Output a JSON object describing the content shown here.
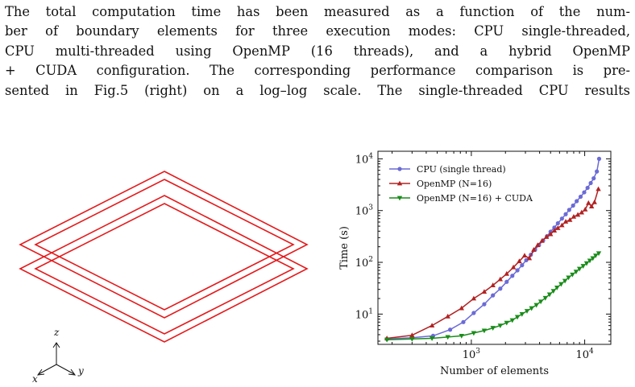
{
  "paragraph": {
    "lines": [
      "The total computation time has been measured as a function of the num-",
      "ber of boundary elements for three execution modes: CPU single-threaded,",
      "CPU multi-threaded using OpenMP (16 threads), and a hybrid OpenMP",
      "+ CUDA configuration. The corresponding performance comparison is pre-",
      "sented in Fig.5 (right) on a log–log scale. The single-threaded CPU results"
    ]
  },
  "geometry_figure": {
    "axis_labels": {
      "z": "z",
      "x": "x",
      "y": "y"
    },
    "outline_color": "#e41a1c"
  },
  "chart_data": {
    "type": "line",
    "xscale": "log",
    "yscale": "log",
    "xlabel": "Number of elements",
    "ylabel": "Time (s)",
    "xlim": [
      150,
      17000
    ],
    "ylim": [
      2.6,
      14000
    ],
    "xticks": [
      1000,
      10000
    ],
    "xtick_labels": [
      "10^3",
      "10^4"
    ],
    "yticks": [
      10,
      100,
      1000,
      10000
    ],
    "ytick_labels": [
      "10^1",
      "10^2",
      "10^3",
      "10^4"
    ],
    "legend_position": "top-left",
    "series": [
      {
        "name": "CPU (single thread)",
        "color": "#6b6bd6",
        "marker": "circle",
        "x": [
          180,
          300,
          460,
          650,
          850,
          1050,
          1300,
          1550,
          1800,
          2050,
          2300,
          2550,
          2800,
          3050,
          3350,
          3650,
          3950,
          4300,
          4650,
          5000,
          5400,
          5800,
          6300,
          6800,
          7300,
          7900,
          8500,
          9200,
          9900,
          10600,
          11300,
          12000,
          12800,
          13400
        ],
        "y": [
          3.3,
          3.5,
          3.8,
          5.0,
          7.0,
          10.5,
          15.5,
          23,
          31,
          42,
          55,
          70,
          88,
          110,
          140,
          175,
          215,
          265,
          320,
          390,
          470,
          570,
          700,
          850,
          1030,
          1250,
          1520,
          1850,
          2250,
          2750,
          3400,
          4200,
          5700,
          10000
        ]
      },
      {
        "name": "OpenMP (N=16)",
        "color": "#b22222",
        "marker": "triangle-up",
        "x": [
          180,
          300,
          450,
          620,
          820,
          1050,
          1300,
          1550,
          1800,
          2050,
          2350,
          2650,
          2950,
          3250,
          3550,
          3850,
          4200,
          4600,
          5000,
          5400,
          5800,
          6300,
          6800,
          7400,
          8000,
          8700,
          9400,
          10100,
          10800,
          11500,
          12200,
          13200
        ],
        "y": [
          3.4,
          3.9,
          6.0,
          9.0,
          13,
          20,
          27,
          36,
          47,
          60,
          80,
          105,
          135,
          120,
          175,
          215,
          260,
          310,
          350,
          410,
          460,
          520,
          610,
          660,
          760,
          830,
          920,
          1050,
          1400,
          1200,
          1450,
          2600
        ]
      },
      {
        "name": "OpenMP (N=16) + CUDA",
        "color": "#1a8c1a",
        "marker": "triangle-down",
        "x": [
          180,
          300,
          450,
          620,
          820,
          1050,
          1300,
          1550,
          1800,
          2050,
          2300,
          2550,
          2800,
          3100,
          3400,
          3750,
          4100,
          4500,
          4900,
          5300,
          5700,
          6200,
          6700,
          7200,
          7800,
          8400,
          9000,
          9700,
          10400,
          11100,
          11800,
          12500,
          13300
        ],
        "y": [
          3.2,
          3.3,
          3.4,
          3.6,
          3.8,
          4.3,
          4.8,
          5.4,
          6.0,
          6.8,
          7.6,
          8.8,
          10,
          11.5,
          13,
          15,
          17.5,
          20.5,
          24,
          28,
          32.5,
          38,
          44,
          51,
          58,
          66,
          75,
          85,
          96,
          108,
          120,
          135,
          150
        ]
      }
    ]
  }
}
